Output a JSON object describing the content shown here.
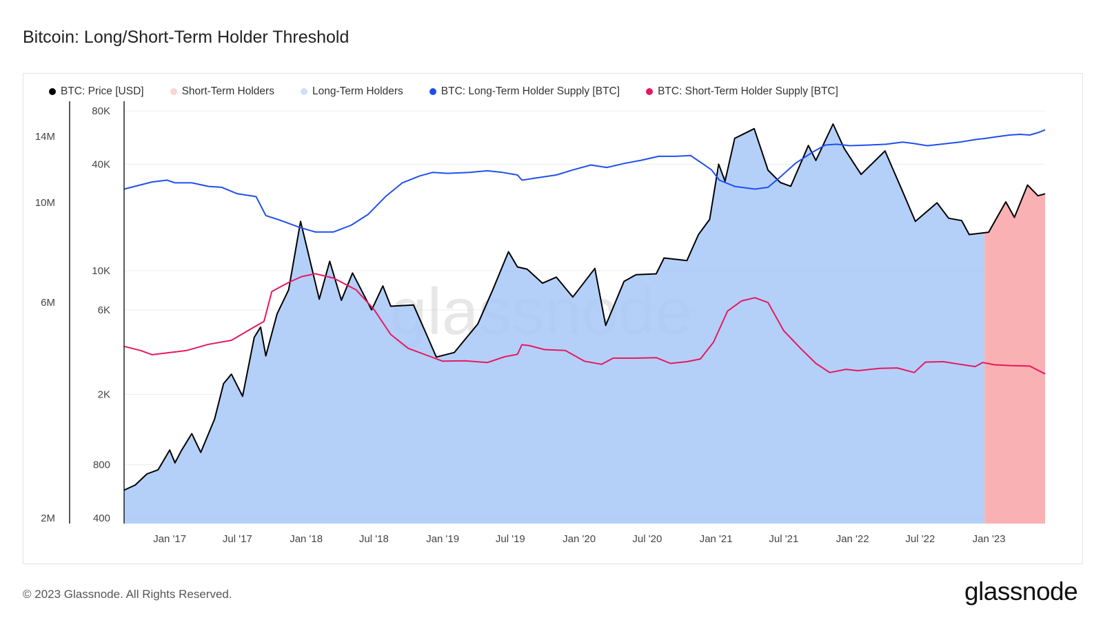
{
  "title": "Bitcoin: Long/Short-Term Holder Threshold",
  "watermark": "glassnode",
  "footer": {
    "copyright": "© 2023 Glassnode. All Rights Reserved.",
    "brand": "glassnode"
  },
  "colors": {
    "price": "#000000",
    "sth_fill": "#f9a9ab",
    "lth_fill": "#a7c8f8",
    "lth_supply": "#1f4ef0",
    "sth_supply": "#e8175d"
  },
  "legend": [
    {
      "label": "BTC: Price [USD]",
      "color": "#000000",
      "icon": "legend-dot"
    },
    {
      "label": "Short-Term Holders",
      "color": "#fbd4d4",
      "icon": "legend-dot"
    },
    {
      "label": "Long-Term Holders",
      "color": "#cfe0fb",
      "icon": "legend-dot"
    },
    {
      "label": "BTC: Long-Term Holder Supply [BTC]",
      "color": "#1f4ef0",
      "icon": "legend-dot"
    },
    {
      "label": "BTC: Short-Term Holder Supply [BTC]",
      "color": "#e8175d",
      "icon": "legend-dot"
    }
  ],
  "chart_data": {
    "type": "line",
    "scale": "log",
    "x_ticks": [
      "Jan '17",
      "Jul '17",
      "Jan '18",
      "Jul '18",
      "Jan '19",
      "Jul '19",
      "Jan '20",
      "Jul '20",
      "Jan '21",
      "Jul '21",
      "Jan '22",
      "Jul '22",
      "Jan '23"
    ],
    "y_left_ticks": [
      "14M",
      "10M",
      "6M",
      "2M"
    ],
    "y_left_range": [
      2000000,
      16000000
    ],
    "y_right_ticks": [
      "80K",
      "40K",
      "10K",
      "6K",
      "2K",
      "800",
      "400"
    ],
    "y_right_range": [
      400,
      80000
    ],
    "x_range": [
      "2016-09-01",
      "2023-05-31"
    ],
    "holder_threshold_date": "2022-12-20",
    "series": [
      {
        "name": "BTC: Price [USD]",
        "axis": "right",
        "points": [
          [
            "2016-09-01",
            575
          ],
          [
            "2016-10-01",
            615
          ],
          [
            "2016-11-01",
            710
          ],
          [
            "2016-12-01",
            750
          ],
          [
            "2017-01-01",
            970
          ],
          [
            "2017-01-15",
            820
          ],
          [
            "2017-02-01",
            960
          ],
          [
            "2017-03-01",
            1200
          ],
          [
            "2017-03-25",
            940
          ],
          [
            "2017-05-01",
            1450
          ],
          [
            "2017-05-25",
            2300
          ],
          [
            "2017-06-15",
            2600
          ],
          [
            "2017-07-15",
            1950
          ],
          [
            "2017-08-15",
            4200
          ],
          [
            "2017-09-01",
            4800
          ],
          [
            "2017-09-15",
            3300
          ],
          [
            "2017-10-15",
            5700
          ],
          [
            "2017-11-15",
            7800
          ],
          [
            "2017-12-17",
            19000
          ],
          [
            "2018-01-01",
            14000
          ],
          [
            "2018-02-05",
            6900
          ],
          [
            "2018-03-05",
            11300
          ],
          [
            "2018-04-05",
            6800
          ],
          [
            "2018-05-05",
            9700
          ],
          [
            "2018-06-25",
            6000
          ],
          [
            "2018-07-25",
            8200
          ],
          [
            "2018-08-15",
            6300
          ],
          [
            "2018-10-15",
            6400
          ],
          [
            "2018-11-20",
            4300
          ],
          [
            "2018-12-15",
            3250
          ],
          [
            "2019-02-01",
            3450
          ],
          [
            "2019-04-05",
            5000
          ],
          [
            "2019-05-15",
            7800
          ],
          [
            "2019-06-26",
            12800
          ],
          [
            "2019-07-20",
            10500
          ],
          [
            "2019-08-15",
            10200
          ],
          [
            "2019-09-25",
            8500
          ],
          [
            "2019-11-01",
            9200
          ],
          [
            "2019-12-15",
            7100
          ],
          [
            "2020-02-12",
            10300
          ],
          [
            "2020-03-12",
            4900
          ],
          [
            "2020-04-30",
            8700
          ],
          [
            "2020-06-01",
            9500
          ],
          [
            "2020-07-25",
            9600
          ],
          [
            "2020-08-15",
            11800
          ],
          [
            "2020-10-15",
            11400
          ],
          [
            "2020-11-15",
            16000
          ],
          [
            "2020-12-15",
            19500
          ],
          [
            "2021-01-08",
            40000
          ],
          [
            "2021-01-25",
            32000
          ],
          [
            "2021-02-20",
            56000
          ],
          [
            "2021-04-13",
            63500
          ],
          [
            "2021-05-20",
            37000
          ],
          [
            "2021-06-22",
            31500
          ],
          [
            "2021-07-20",
            30000
          ],
          [
            "2021-09-05",
            51000
          ],
          [
            "2021-09-25",
            42000
          ],
          [
            "2021-11-10",
            67500
          ],
          [
            "2021-12-10",
            49000
          ],
          [
            "2022-01-24",
            35000
          ],
          [
            "2022-03-29",
            47500
          ],
          [
            "2022-05-12",
            29000
          ],
          [
            "2022-06-18",
            19000
          ],
          [
            "2022-08-15",
            24200
          ],
          [
            "2022-09-15",
            19800
          ],
          [
            "2022-10-20",
            19200
          ],
          [
            "2022-11-09",
            16000
          ],
          [
            "2022-12-31",
            16500
          ],
          [
            "2023-02-15",
            24500
          ],
          [
            "2023-03-10",
            20000
          ],
          [
            "2023-04-14",
            30500
          ],
          [
            "2023-05-12",
            26500
          ],
          [
            "2023-05-31",
            27200
          ]
        ]
      },
      {
        "name": "BTC: Long-Term Holder Supply [BTC]",
        "axis": "left",
        "points": [
          [
            "2016-09-01",
            10700000
          ],
          [
            "2016-11-15",
            11100000
          ],
          [
            "2016-12-25",
            11200000
          ],
          [
            "2017-01-15",
            11050000
          ],
          [
            "2017-03-01",
            11050000
          ],
          [
            "2017-04-15",
            10850000
          ],
          [
            "2017-05-20",
            10800000
          ],
          [
            "2017-07-01",
            10450000
          ],
          [
            "2017-08-20",
            10300000
          ],
          [
            "2017-09-15",
            9350000
          ],
          [
            "2017-10-20",
            9150000
          ],
          [
            "2017-12-15",
            8800000
          ],
          [
            "2018-01-25",
            8600000
          ],
          [
            "2018-03-15",
            8600000
          ],
          [
            "2018-05-01",
            8900000
          ],
          [
            "2018-06-15",
            9400000
          ],
          [
            "2018-08-01",
            10300000
          ],
          [
            "2018-09-15",
            11050000
          ],
          [
            "2018-11-01",
            11450000
          ],
          [
            "2018-12-05",
            11650000
          ],
          [
            "2019-01-15",
            11600000
          ],
          [
            "2019-03-15",
            11650000
          ],
          [
            "2019-04-30",
            11750000
          ],
          [
            "2019-06-10",
            11650000
          ],
          [
            "2019-07-20",
            11500000
          ],
          [
            "2019-08-01",
            11200000
          ],
          [
            "2019-09-15",
            11350000
          ],
          [
            "2019-11-01",
            11500000
          ],
          [
            "2019-12-15",
            11800000
          ],
          [
            "2020-02-01",
            12100000
          ],
          [
            "2020-03-15",
            11950000
          ],
          [
            "2020-05-01",
            12200000
          ],
          [
            "2020-06-15",
            12400000
          ],
          [
            "2020-08-01",
            12650000
          ],
          [
            "2020-09-15",
            12650000
          ],
          [
            "2020-10-25",
            12700000
          ],
          [
            "2020-11-25",
            12200000
          ],
          [
            "2020-12-20",
            11800000
          ],
          [
            "2021-01-10",
            11200000
          ],
          [
            "2021-02-20",
            10850000
          ],
          [
            "2021-04-15",
            10700000
          ],
          [
            "2021-05-20",
            10800000
          ],
          [
            "2021-06-20",
            11350000
          ],
          [
            "2021-08-01",
            12200000
          ],
          [
            "2021-09-15",
            12900000
          ],
          [
            "2021-10-20",
            13400000
          ],
          [
            "2021-11-20",
            13450000
          ],
          [
            "2021-12-25",
            13350000
          ],
          [
            "2022-02-15",
            13400000
          ],
          [
            "2022-04-01",
            13450000
          ],
          [
            "2022-05-15",
            13600000
          ],
          [
            "2022-06-15",
            13500000
          ],
          [
            "2022-07-20",
            13350000
          ],
          [
            "2022-08-25",
            13450000
          ],
          [
            "2022-10-15",
            13600000
          ],
          [
            "2022-12-01",
            13800000
          ],
          [
            "2022-12-20",
            13850000
          ],
          [
            "2023-01-15",
            13950000
          ],
          [
            "2023-02-25",
            14100000
          ],
          [
            "2023-03-25",
            14150000
          ],
          [
            "2023-04-20",
            14100000
          ],
          [
            "2023-05-15",
            14300000
          ],
          [
            "2023-05-31",
            14480000
          ]
        ]
      },
      {
        "name": "BTC: Short-Term Holder Supply [BTC]",
        "axis": "left",
        "points": [
          [
            "2016-09-01",
            4800000
          ],
          [
            "2016-10-15",
            4700000
          ],
          [
            "2016-11-15",
            4600000
          ],
          [
            "2017-01-01",
            4650000
          ],
          [
            "2017-02-15",
            4700000
          ],
          [
            "2017-04-15",
            4850000
          ],
          [
            "2017-06-15",
            4950000
          ],
          [
            "2017-08-15",
            5300000
          ],
          [
            "2017-09-10",
            5450000
          ],
          [
            "2017-10-01",
            6350000
          ],
          [
            "2017-11-15",
            6650000
          ],
          [
            "2017-12-20",
            6850000
          ],
          [
            "2018-01-25",
            6950000
          ],
          [
            "2018-03-15",
            6800000
          ],
          [
            "2018-05-15",
            6400000
          ],
          [
            "2018-07-01",
            5800000
          ],
          [
            "2018-08-15",
            5100000
          ],
          [
            "2018-10-01",
            4750000
          ],
          [
            "2018-12-01",
            4550000
          ],
          [
            "2019-01-01",
            4450000
          ],
          [
            "2019-03-01",
            4460000
          ],
          [
            "2019-05-01",
            4420000
          ],
          [
            "2019-06-15",
            4550000
          ],
          [
            "2019-07-20",
            4610000
          ],
          [
            "2019-08-01",
            4840000
          ],
          [
            "2019-08-20",
            4820000
          ],
          [
            "2019-10-01",
            4720000
          ],
          [
            "2019-11-25",
            4700000
          ],
          [
            "2020-01-15",
            4450000
          ],
          [
            "2020-03-01",
            4380000
          ],
          [
            "2020-04-01",
            4520000
          ],
          [
            "2020-06-01",
            4520000
          ],
          [
            "2020-07-25",
            4530000
          ],
          [
            "2020-09-01",
            4400000
          ],
          [
            "2020-10-15",
            4440000
          ],
          [
            "2020-11-20",
            4500000
          ],
          [
            "2020-12-25",
            4900000
          ],
          [
            "2021-02-01",
            5750000
          ],
          [
            "2021-03-10",
            6050000
          ],
          [
            "2021-04-15",
            6150000
          ],
          [
            "2021-05-20",
            6000000
          ],
          [
            "2021-07-01",
            5200000
          ],
          [
            "2021-08-15",
            4750000
          ],
          [
            "2021-09-25",
            4400000
          ],
          [
            "2021-11-01",
            4200000
          ],
          [
            "2021-12-15",
            4270000
          ],
          [
            "2022-01-15",
            4240000
          ],
          [
            "2022-03-15",
            4290000
          ],
          [
            "2022-05-01",
            4300000
          ],
          [
            "2022-06-15",
            4200000
          ],
          [
            "2022-07-15",
            4430000
          ],
          [
            "2022-09-01",
            4440000
          ],
          [
            "2022-10-15",
            4380000
          ],
          [
            "2022-11-25",
            4330000
          ],
          [
            "2022-12-15",
            4420000
          ],
          [
            "2023-01-15",
            4370000
          ],
          [
            "2023-03-01",
            4350000
          ],
          [
            "2023-04-20",
            4340000
          ],
          [
            "2023-05-31",
            4170000
          ]
        ]
      }
    ]
  }
}
